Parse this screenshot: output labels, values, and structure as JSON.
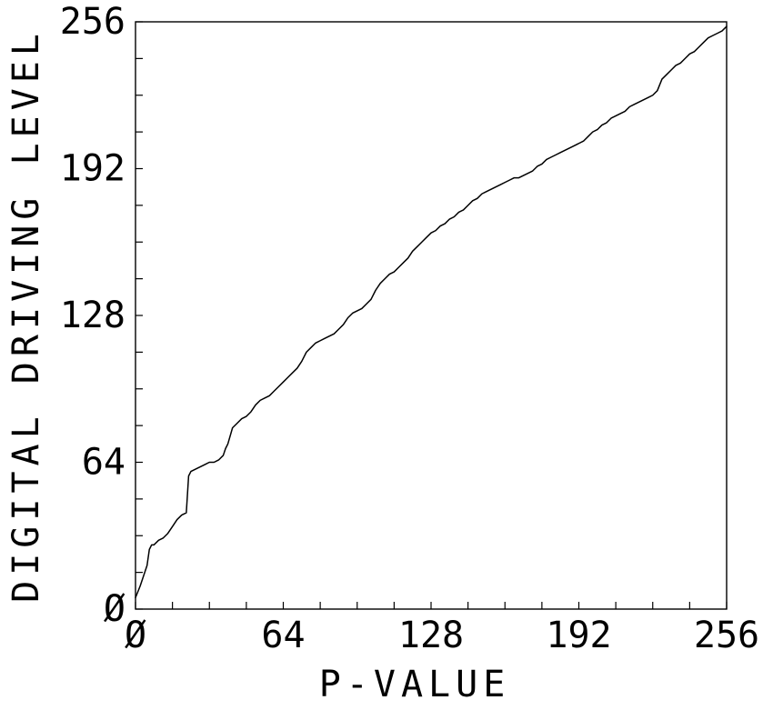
{
  "chart_data": {
    "type": "line",
    "title": "",
    "xlabel": "P-VALUE",
    "ylabel": "DIGITAL DRIVING LEVEL",
    "xlim": [
      0,
      256
    ],
    "ylim": [
      0,
      256
    ],
    "x_ticks": [
      0,
      64,
      128,
      192,
      256
    ],
    "y_ticks": [
      0,
      64,
      128,
      192,
      256
    ],
    "x_tick_labels": [
      "Ø",
      "64",
      "128",
      "192",
      "256"
    ],
    "y_tick_labels": [
      "Ø",
      "64",
      "128",
      "192",
      "256"
    ],
    "minor_tick_step": 16,
    "grid": false,
    "legend": "none",
    "line_color": "#000000",
    "series": [
      {
        "x": [
          0,
          2,
          4,
          5,
          6,
          7,
          8,
          10,
          12,
          14,
          16,
          18,
          20,
          22,
          23,
          24,
          26,
          28,
          30,
          32,
          34,
          36,
          38,
          39,
          40,
          42,
          44,
          46,
          48,
          50,
          52,
          54,
          56,
          58,
          60,
          62,
          64,
          66,
          68,
          70,
          72,
          74,
          76,
          78,
          80,
          82,
          84,
          86,
          88,
          90,
          92,
          94,
          96,
          98,
          100,
          102,
          104,
          106,
          108,
          110,
          112,
          114,
          116,
          118,
          120,
          122,
          124,
          126,
          128,
          130,
          132,
          134,
          136,
          138,
          140,
          142,
          144,
          146,
          148,
          150,
          152,
          154,
          156,
          158,
          160,
          162,
          164,
          166,
          168,
          170,
          172,
          174,
          176,
          178,
          180,
          182,
          184,
          186,
          188,
          190,
          192,
          194,
          196,
          198,
          200,
          202,
          204,
          206,
          208,
          210,
          212,
          214,
          216,
          218,
          220,
          222,
          224,
          226,
          228,
          230,
          232,
          234,
          236,
          238,
          240,
          242,
          244,
          246,
          248,
          250,
          252,
          254,
          256
        ],
        "y": [
          5,
          10,
          16,
          19,
          26,
          28,
          28,
          30,
          31,
          33,
          36,
          39,
          41,
          42,
          58,
          60,
          61,
          62,
          63,
          64,
          64,
          65,
          67,
          70,
          72,
          79,
          81,
          83,
          84,
          86,
          89,
          91,
          92,
          93,
          95,
          97,
          99,
          101,
          103,
          105,
          108,
          112,
          114,
          116,
          117,
          118,
          119,
          120,
          122,
          124,
          127,
          129,
          130,
          131,
          133,
          135,
          139,
          142,
          144,
          146,
          147,
          149,
          151,
          153,
          156,
          158,
          160,
          162,
          164,
          165,
          167,
          168,
          170,
          171,
          173,
          174,
          176,
          178,
          179,
          181,
          182,
          183,
          184,
          185,
          186,
          187,
          188,
          188,
          189,
          190,
          191,
          193,
          194,
          196,
          197,
          198,
          199,
          200,
          201,
          202,
          203,
          204,
          206,
          208,
          209,
          211,
          212,
          214,
          215,
          216,
          217,
          219,
          220,
          221,
          222,
          223,
          224,
          226,
          231,
          233,
          235,
          237,
          238,
          240,
          242,
          243,
          245,
          247,
          249,
          250,
          251,
          252,
          254
        ]
      }
    ]
  }
}
